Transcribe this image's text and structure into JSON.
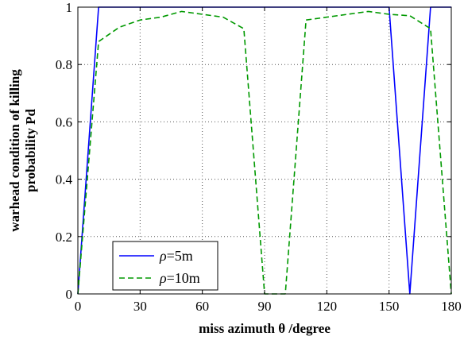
{
  "chart_data": {
    "type": "line",
    "xlabel": "miss azimuth  θ /degree",
    "ylabel_line1": "warhead condition of killing",
    "ylabel_line2": "probability Pd",
    "xlim": [
      0,
      180
    ],
    "ylim": [
      0,
      1
    ],
    "x_ticks": [
      0,
      30,
      60,
      90,
      120,
      150,
      180
    ],
    "y_ticks": [
      0,
      0.2,
      0.4,
      0.6,
      0.8,
      1
    ],
    "y_tick_labels": [
      "0",
      "0.2",
      "0.4",
      "0.6",
      "0.8",
      "1"
    ],
    "grid": true,
    "legend_position": "bottom-left",
    "series": [
      {
        "name": "ρ=5m",
        "name_symbol": "ρ",
        "name_rest": "=5m",
        "color": "#0000ff",
        "dash": "solid",
        "x": [
          0,
          10,
          20,
          30,
          40,
          50,
          60,
          70,
          80,
          90,
          100,
          110,
          120,
          130,
          140,
          150,
          160,
          170,
          180
        ],
        "y": [
          0,
          1,
          1,
          1,
          1,
          1,
          1,
          1,
          1,
          1,
          1,
          1,
          1,
          1,
          1,
          1,
          0,
          1,
          1
        ]
      },
      {
        "name": "ρ=10m",
        "name_symbol": "ρ",
        "name_rest": "=10m",
        "color": "#009900",
        "dash": "dashed",
        "x": [
          0,
          10,
          20,
          30,
          40,
          50,
          60,
          70,
          80,
          90,
          100,
          110,
          120,
          130,
          140,
          150,
          160,
          170,
          180
        ],
        "y": [
          0,
          0.88,
          0.93,
          0.955,
          0.965,
          0.985,
          0.975,
          0.965,
          0.925,
          0,
          0,
          0.955,
          0.965,
          0.975,
          0.985,
          0.975,
          0.97,
          0.925,
          0
        ]
      }
    ]
  }
}
